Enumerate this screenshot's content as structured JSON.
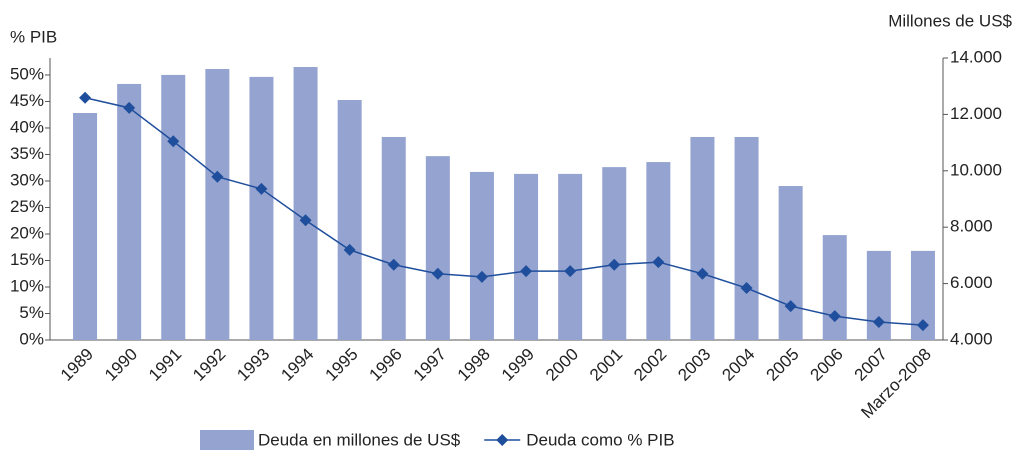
{
  "chart_data": {
    "type": "bar_line",
    "y_label": "% PIB",
    "y2_label": "Millones de US$",
    "categories": [
      "1989",
      "1990",
      "1991",
      "1992",
      "1993",
      "1994",
      "1995",
      "1996",
      "1997",
      "1998",
      "1999",
      "2000",
      "2001",
      "2002",
      "2003",
      "2004",
      "2005",
      "2006",
      "2007",
      "Marzo-2008"
    ],
    "series": [
      {
        "name": "Deuda en millones de US$",
        "type": "bar",
        "axis": "y2",
        "color": "#94a3d0",
        "values": [
          12050,
          13080,
          13400,
          13610,
          13330,
          13680,
          12510,
          11200,
          10520,
          9960,
          9890,
          9890,
          10130,
          10310,
          11200,
          11200,
          9460,
          7720,
          7160,
          7160
        ]
      },
      {
        "name": "Deuda como % PIB",
        "type": "line",
        "axis": "y",
        "color": "#1f4e9c",
        "values": [
          45.7,
          43.8,
          37.5,
          30.8,
          28.5,
          22.6,
          17.0,
          14.2,
          12.5,
          11.9,
          13.0,
          13.0,
          14.2,
          14.7,
          12.5,
          9.8,
          6.4,
          4.5,
          3.4,
          2.8
        ]
      }
    ],
    "ylim": [
      0,
      53.2
    ],
    "yticks": [
      {
        "value": 0,
        "label": "0%"
      },
      {
        "value": 5,
        "label": "5%"
      },
      {
        "value": 10,
        "label": "10%"
      },
      {
        "value": 15,
        "label": "15%"
      },
      {
        "value": 20,
        "label": "20%"
      },
      {
        "value": 25,
        "label": "25%"
      },
      {
        "value": 30,
        "label": "30%"
      },
      {
        "value": 35,
        "label": "35%"
      },
      {
        "value": 40,
        "label": "40%"
      },
      {
        "value": 45,
        "label": "45%"
      },
      {
        "value": 50,
        "label": "50%"
      }
    ],
    "y2lim": [
      4000,
      14000
    ],
    "y2ticks": [
      {
        "value": 4000,
        "label": "4.000"
      },
      {
        "value": 6000,
        "label": "6.000"
      },
      {
        "value": 8000,
        "label": "8.000"
      },
      {
        "value": 10000,
        "label": "10.000"
      },
      {
        "value": 12000,
        "label": "12.000"
      },
      {
        "value": 14000,
        "label": "14.000"
      }
    ],
    "grid": false,
    "legend": "bottom"
  }
}
